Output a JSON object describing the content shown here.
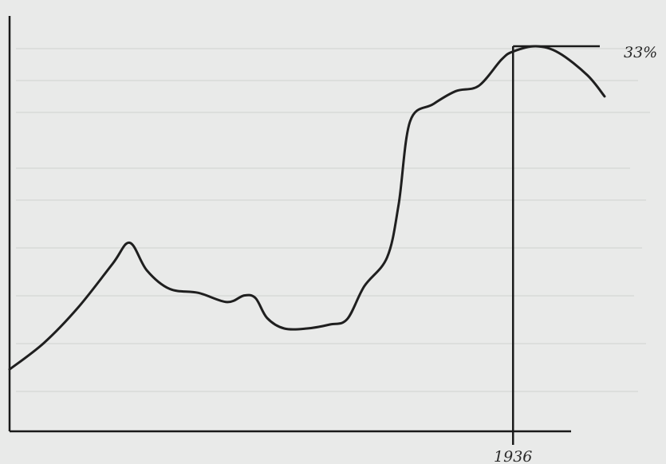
{
  "chart_data": {
    "type": "line",
    "title": "",
    "xlabel": "",
    "ylabel": "",
    "grid": false,
    "legend": "none",
    "x": [
      0,
      3,
      6,
      9,
      10.5,
      12,
      14,
      16.5,
      19,
      20.5,
      21.5,
      22.5,
      24,
      26,
      28,
      29.5,
      31,
      33,
      34,
      35,
      37,
      39,
      41,
      43,
      44,
      46,
      48,
      50.5,
      52
    ],
    "y": [
      8.5,
      10.5,
      13.2,
      16.5,
      18.1,
      16,
      14.6,
      14.3,
      13.6,
      14.1,
      13.9,
      12.4,
      11.6,
      11.6,
      11.9,
      12.3,
      14.8,
      17,
      21,
      27.3,
      28.6,
      29.6,
      30,
      32,
      32.6,
      33,
      32.5,
      30.8,
      29.2
    ],
    "series_color": "#1f1f1f",
    "annotations": [
      {
        "label": "33%",
        "x": 44,
        "y": 33,
        "kind": "horizontal-leader"
      },
      {
        "label": "1936",
        "x": 44,
        "y": 33,
        "kind": "vertical-drop"
      }
    ],
    "xlim": [
      0,
      52
    ],
    "ylim": [
      3.8,
      35.3
    ]
  },
  "labels": {
    "peak_value": "33%",
    "peak_year": "1936"
  }
}
